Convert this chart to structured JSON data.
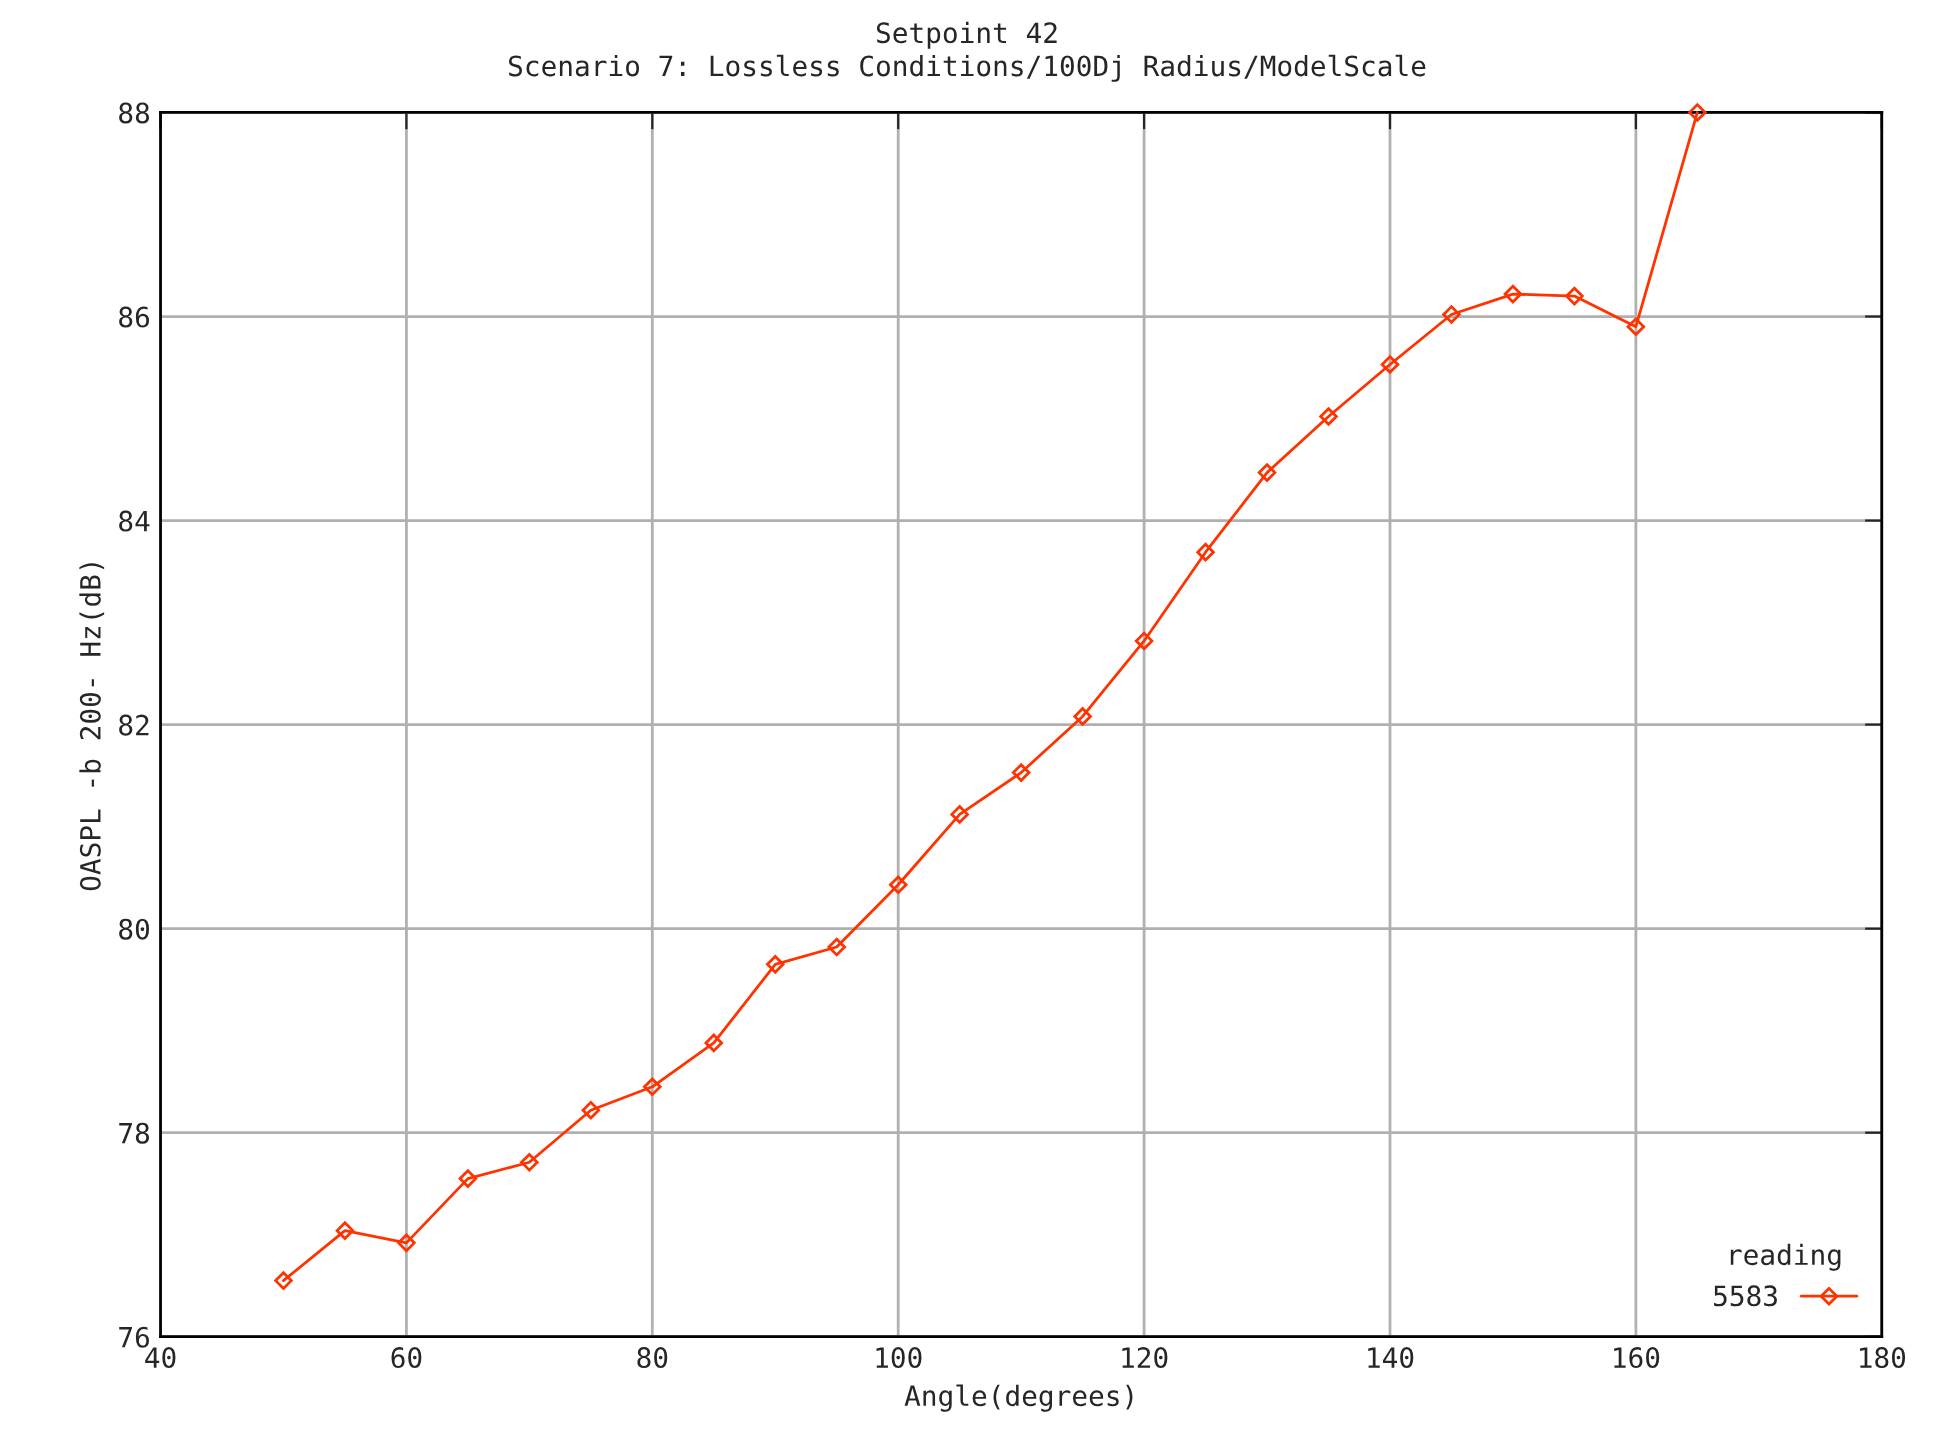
{
  "chart_data": {
    "type": "line",
    "title": "Setpoint 42",
    "subtitle": "Scenario 7: Lossless Conditions/100Dj Radius/ModelScale",
    "xlabel": "Angle(degrees)",
    "ylabel": "OASPL -b 200- Hz(dB)",
    "legend_title": "reading",
    "x": [
      50,
      55,
      60,
      65,
      70,
      75,
      80,
      85,
      90,
      95,
      100,
      105,
      110,
      115,
      120,
      125,
      130,
      135,
      140,
      145,
      150,
      155,
      160,
      165
    ],
    "series": [
      {
        "name": "5583",
        "color": "#ff3300",
        "values": [
          76.55,
          77.04,
          76.92,
          77.55,
          77.71,
          78.22,
          78.45,
          78.88,
          79.65,
          79.82,
          80.43,
          81.12,
          81.53,
          82.08,
          82.82,
          83.69,
          84.47,
          85.02,
          85.53,
          86.02,
          86.22,
          86.2,
          85.9,
          88.0
        ]
      }
    ],
    "xlim": [
      40,
      180
    ],
    "xticks": [
      40,
      60,
      80,
      100,
      120,
      140,
      160,
      180
    ],
    "ylim": [
      76,
      88
    ],
    "yticks": [
      76,
      78,
      80,
      82,
      84,
      86,
      88
    ],
    "grid": true,
    "legend": "bottom right",
    "marker": "diamond",
    "line_style": "solid"
  }
}
